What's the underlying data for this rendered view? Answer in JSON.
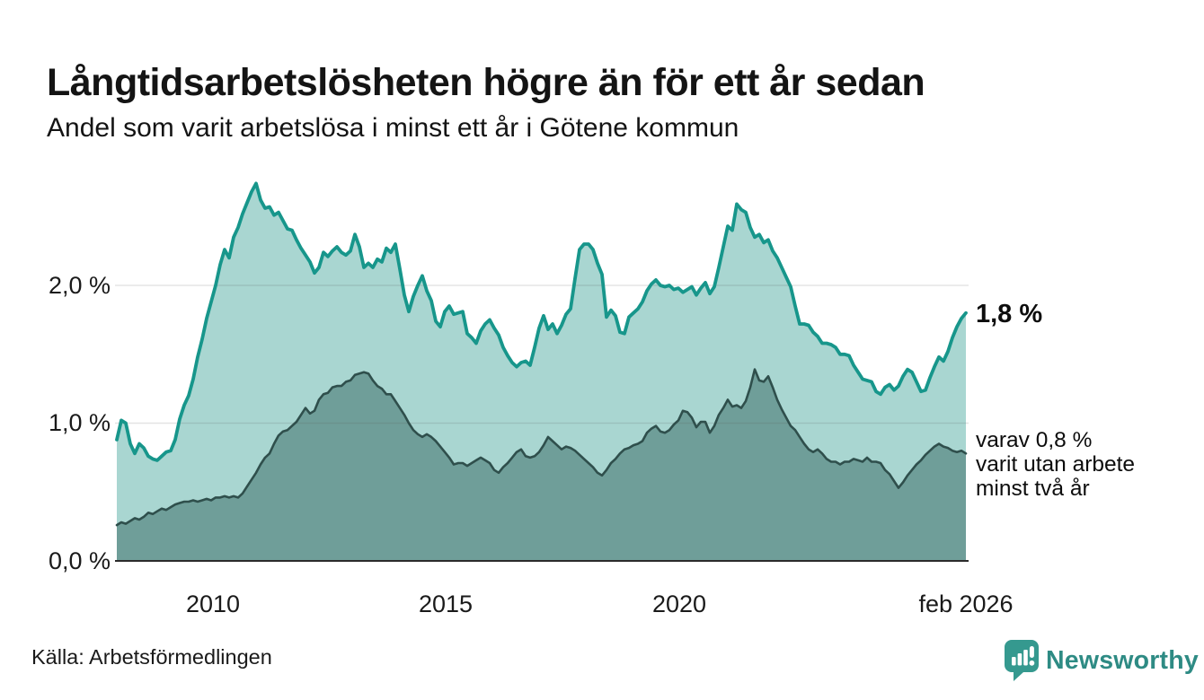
{
  "header": {
    "title": "Långtidsarbetslösheten högre än för ett år sedan",
    "subtitle": "Andel som varit arbetslösa i minst ett år i Götene kommun"
  },
  "axes": {
    "y_ticks": [
      "2,0 %",
      "1,0 %",
      "0,0 %"
    ],
    "x_ticks": [
      "2010",
      "2015",
      "2020",
      "feb 2026"
    ]
  },
  "annotations": {
    "latest_total_label": "1,8 %",
    "secondary_lines": [
      "varav 0,8 %",
      "varit utan arbete",
      "minst två år"
    ]
  },
  "footer": {
    "source": "Källa: Arbetsförmedlingen",
    "brand_name": "Newsworthy",
    "brand_icon": "newsworthy-speech-bubble-barchart-icon"
  },
  "colors": {
    "total_line": "#17968b",
    "total_fill": "#a9d6d1",
    "two_year_line": "#2f4f4c",
    "two_year_fill": "#6f9e99",
    "gridline": "#dedede",
    "axis_line": "#2b2b2b",
    "brand_teal": "#2e8b84",
    "brand_icon_teal": "#35998f",
    "text": "#141414"
  },
  "chart_data": {
    "type": "area",
    "title": "Långtidsarbetslösheten högre än för ett år sedan",
    "subtitle": "Andel som varit arbetslösa i minst ett år i Götene kommun",
    "unit": "%",
    "x_start_year": 2008.0,
    "x_end_year": 2026.083,
    "x_tick_years": [
      2010,
      2015,
      2020,
      2026.083
    ],
    "x_tick_labels": [
      "2010",
      "2015",
      "2020",
      "feb 2026"
    ],
    "ylim": [
      0,
      2.9
    ],
    "y_gridline_values": [
      1,
      2
    ],
    "grid": true,
    "legend": "none (direct labels at line ends)",
    "series": [
      {
        "name": "Andel arbetslösa minst ett år",
        "end_label": "1,8 %",
        "end_value": 1.8,
        "line_color": "#17968b",
        "fill_color": "#a9d6d1",
        "line_width": 3.8,
        "values": [
          0.88,
          1.02,
          1.0,
          0.85,
          0.78,
          0.85,
          0.82,
          0.76,
          0.74,
          0.73,
          0.76,
          0.79,
          0.8,
          0.88,
          1.03,
          1.13,
          1.2,
          1.32,
          1.48,
          1.61,
          1.76,
          1.88,
          2.0,
          2.15,
          2.26,
          2.2,
          2.35,
          2.42,
          2.52,
          2.6,
          2.68,
          2.74,
          2.62,
          2.56,
          2.57,
          2.51,
          2.53,
          2.47,
          2.41,
          2.4,
          2.33,
          2.27,
          2.22,
          2.17,
          2.09,
          2.13,
          2.24,
          2.21,
          2.25,
          2.28,
          2.24,
          2.22,
          2.25,
          2.37,
          2.28,
          2.13,
          2.16,
          2.13,
          2.19,
          2.17,
          2.27,
          2.24,
          2.3,
          2.12,
          1.93,
          1.81,
          1.92,
          2.0,
          2.07,
          1.96,
          1.89,
          1.74,
          1.7,
          1.81,
          1.85,
          1.79,
          1.8,
          1.81,
          1.65,
          1.62,
          1.58,
          1.67,
          1.72,
          1.75,
          1.69,
          1.64,
          1.55,
          1.49,
          1.44,
          1.41,
          1.44,
          1.45,
          1.42,
          1.55,
          1.69,
          1.78,
          1.68,
          1.72,
          1.65,
          1.71,
          1.79,
          1.83,
          2.05,
          2.26,
          2.3,
          2.3,
          2.26,
          2.16,
          2.08,
          1.77,
          1.82,
          1.78,
          1.66,
          1.65,
          1.77,
          1.8,
          1.83,
          1.88,
          1.96,
          2.01,
          2.04,
          2.0,
          1.99,
          2.0,
          1.97,
          1.98,
          1.95,
          1.97,
          1.99,
          1.93,
          1.98,
          2.02,
          1.94,
          1.99,
          2.13,
          2.28,
          2.43,
          2.4,
          2.59,
          2.55,
          2.53,
          2.42,
          2.35,
          2.37,
          2.31,
          2.33,
          2.25,
          2.2,
          2.13,
          2.06,
          1.99,
          1.85,
          1.72,
          1.72,
          1.71,
          1.66,
          1.63,
          1.58,
          1.58,
          1.57,
          1.55,
          1.5,
          1.5,
          1.49,
          1.42,
          1.37,
          1.32,
          1.31,
          1.3,
          1.23,
          1.21,
          1.26,
          1.28,
          1.24,
          1.27,
          1.34,
          1.39,
          1.37,
          1.3,
          1.23,
          1.24,
          1.33,
          1.41,
          1.48,
          1.45,
          1.52,
          1.62,
          1.7,
          1.76,
          1.8
        ]
      },
      {
        "name": "varav arbetslösa minst två år",
        "end_label": "varav 0,8 % varit utan arbete minst två år",
        "end_value": 0.8,
        "line_color": "#2f4f4c",
        "fill_color": "#6f9e99",
        "line_width": 2.6,
        "values": [
          0.26,
          0.28,
          0.27,
          0.29,
          0.31,
          0.3,
          0.32,
          0.35,
          0.34,
          0.36,
          0.38,
          0.37,
          0.39,
          0.41,
          0.42,
          0.43,
          0.43,
          0.44,
          0.43,
          0.44,
          0.45,
          0.44,
          0.46,
          0.46,
          0.47,
          0.46,
          0.47,
          0.46,
          0.49,
          0.54,
          0.59,
          0.64,
          0.7,
          0.75,
          0.78,
          0.85,
          0.91,
          0.94,
          0.95,
          0.98,
          1.01,
          1.06,
          1.11,
          1.07,
          1.09,
          1.17,
          1.21,
          1.22,
          1.26,
          1.27,
          1.27,
          1.3,
          1.31,
          1.35,
          1.36,
          1.37,
          1.36,
          1.31,
          1.27,
          1.25,
          1.21,
          1.21,
          1.16,
          1.11,
          1.06,
          1.0,
          0.95,
          0.92,
          0.9,
          0.92,
          0.9,
          0.87,
          0.83,
          0.79,
          0.75,
          0.7,
          0.71,
          0.71,
          0.69,
          0.71,
          0.73,
          0.75,
          0.73,
          0.71,
          0.66,
          0.64,
          0.68,
          0.71,
          0.75,
          0.79,
          0.81,
          0.76,
          0.75,
          0.76,
          0.79,
          0.84,
          0.9,
          0.87,
          0.84,
          0.81,
          0.83,
          0.82,
          0.8,
          0.77,
          0.74,
          0.71,
          0.68,
          0.64,
          0.62,
          0.66,
          0.71,
          0.74,
          0.78,
          0.81,
          0.82,
          0.84,
          0.85,
          0.87,
          0.93,
          0.96,
          0.98,
          0.94,
          0.93,
          0.95,
          0.99,
          1.02,
          1.09,
          1.08,
          1.04,
          0.97,
          1.01,
          1.01,
          0.93,
          0.98,
          1.06,
          1.11,
          1.17,
          1.12,
          1.13,
          1.11,
          1.16,
          1.26,
          1.39,
          1.31,
          1.3,
          1.34,
          1.26,
          1.17,
          1.1,
          1.04,
          0.98,
          0.95,
          0.9,
          0.85,
          0.81,
          0.79,
          0.81,
          0.78,
          0.74,
          0.72,
          0.72,
          0.7,
          0.72,
          0.72,
          0.74,
          0.73,
          0.72,
          0.75,
          0.72,
          0.72,
          0.71,
          0.66,
          0.63,
          0.58,
          0.53,
          0.57,
          0.62,
          0.66,
          0.7,
          0.73,
          0.77,
          0.8,
          0.83,
          0.85,
          0.83,
          0.82,
          0.8,
          0.79,
          0.8,
          0.78
        ]
      }
    ]
  }
}
